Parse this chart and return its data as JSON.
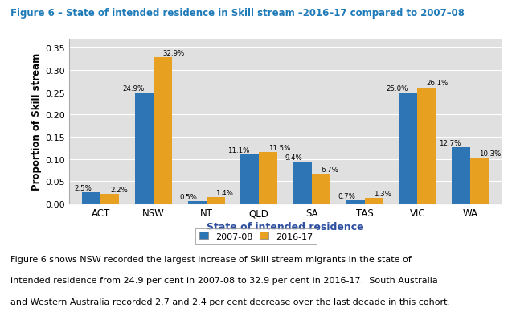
{
  "title": "Figure 6 – State of intended residence in Skill stream –2016–17 compared to 2007–08",
  "categories": [
    "ACT",
    "NSW",
    "NT",
    "QLD",
    "SA",
    "TAS",
    "VIC",
    "WA"
  ],
  "values_2007": [
    0.025,
    0.249,
    0.005,
    0.111,
    0.094,
    0.007,
    0.25,
    0.127
  ],
  "values_2016": [
    0.022,
    0.329,
    0.014,
    0.115,
    0.067,
    0.013,
    0.261,
    0.103
  ],
  "labels_2007": [
    "2.5%",
    "24.9%",
    "0.5%",
    "11.1%",
    "9.4%",
    "0.7%",
    "25.0%",
    "12.7%"
  ],
  "labels_2016": [
    "2.2%",
    "32.9%",
    "1.4%",
    "11.5%",
    "6.7%",
    "1.3%",
    "26.1%",
    "10.3%"
  ],
  "color_2007": "#2E75B6",
  "color_2016": "#E8A020",
  "xlabel": "State of intended residence",
  "ylabel": "Proportion of Skill stream",
  "ylim": [
    0,
    0.37
  ],
  "yticks": [
    0.0,
    0.05,
    0.1,
    0.15,
    0.2,
    0.25,
    0.3,
    0.35
  ],
  "legend_labels": [
    "2007-08",
    "2016-17"
  ],
  "caption_line1": "Figure 6 shows NSW recorded the largest increase of Skill stream migrants in the state of",
  "caption_line2": "intended residence from 24.9 per cent in 2007-08 to 32.9 per cent in 2016-17.  South Australia",
  "caption_line3": "and Western Australia recorded 2.7 and 2.4 per cent decrease over the last decade in this cohort.",
  "title_color": "#1F7BB8",
  "xlabel_color": "#2E4FA0",
  "plot_bg": "#E0E0E0",
  "bar_width": 0.35
}
